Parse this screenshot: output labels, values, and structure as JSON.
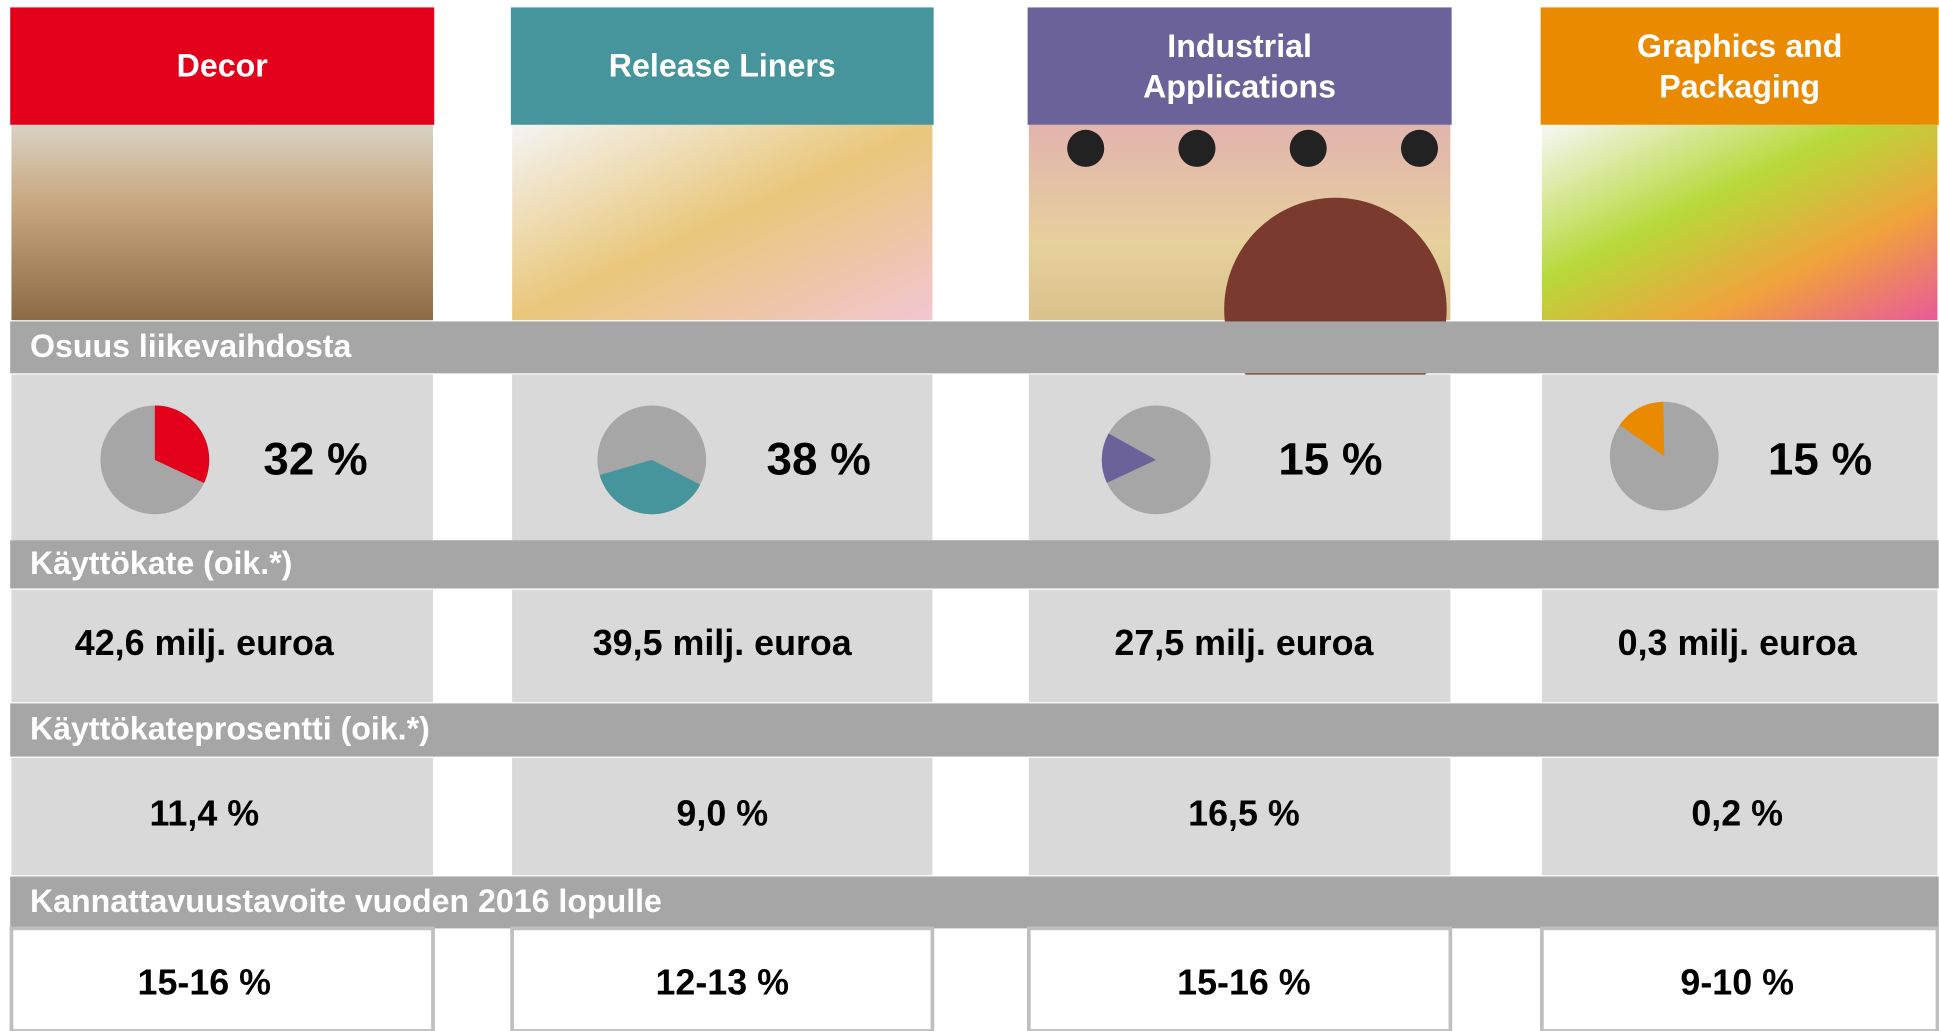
{
  "rows": {
    "share": "Osuus liikevaihdosta",
    "ebitda": "Käyttökate (oik.*)",
    "ebitda_pct": "Käyttökateprosentti (oik.*)",
    "target": "Kannattavuustavoite vuoden 2016 lopulle"
  },
  "segments": [
    {
      "name": "Decor",
      "color": "#e2001a",
      "share": 32,
      "share_label": "32 %",
      "ebitda": "42,6 milj. euroa",
      "ebitda_pct": "11,4 %",
      "target": "15-16 %"
    },
    {
      "name": "Release Liners",
      "color": "#46959c",
      "share": 38,
      "share_label": "38 %",
      "ebitda": "39,5 milj. euroa",
      "ebitda_pct": "9,0 %",
      "target": "12-13 %"
    },
    {
      "name": "Industrial Applications",
      "color": "#6a6298",
      "share": 15,
      "share_label": "15 %",
      "ebitda": "27,5 milj. euroa",
      "ebitda_pct": "16,5 %",
      "target": "15-16 %"
    },
    {
      "name": "Graphics and Packaging",
      "color": "#ea8a00",
      "share": 15,
      "share_label": "15 %",
      "ebitda": "0,3 milj. euroa",
      "ebitda_pct": "0,2 %",
      "target": "9-10 %"
    }
  ]
}
